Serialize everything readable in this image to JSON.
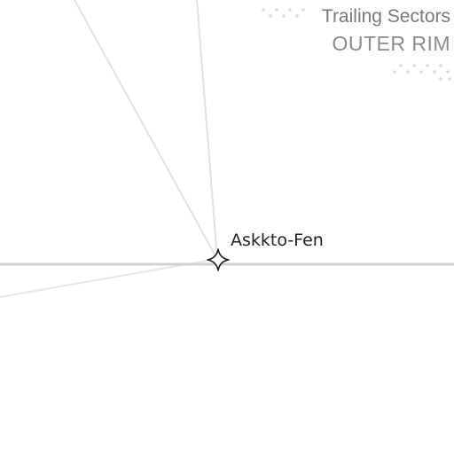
{
  "region": {
    "name": "Trailing Sectors",
    "subtitle": "OUTER RIM"
  },
  "planet": {
    "name": "Askkto-Fen",
    "icon": "four-point-star-icon"
  },
  "colors": {
    "background": "#ffffff",
    "hyperlane": "#d4d4d4",
    "route": "#e4e4e4",
    "dots": "#dcdad2",
    "region_text": "#7a7a7a",
    "planet_text": "#222222"
  }
}
